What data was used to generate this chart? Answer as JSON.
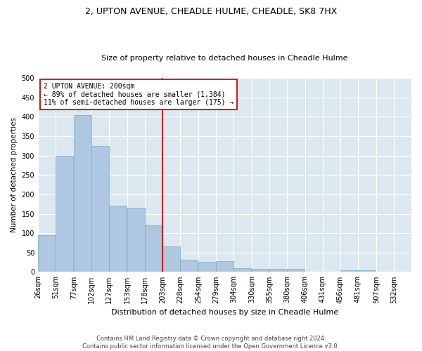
{
  "title": "2, UPTON AVENUE, CHEADLE HULME, CHEADLE, SK8 7HX",
  "subtitle": "Size of property relative to detached houses in Cheadle Hulme",
  "xlabel": "Distribution of detached houses by size in Cheadle Hulme",
  "ylabel": "Number of detached properties",
  "footer_line1": "Contains HM Land Registry data © Crown copyright and database right 2024.",
  "footer_line2": "Contains public sector information licensed under the Open Government Licence v3.0.",
  "annotation_line1": "2 UPTON AVENUE: 200sqm",
  "annotation_line2": "← 89% of detached houses are smaller (1,384)",
  "annotation_line3": "11% of semi-detached houses are larger (175) →",
  "bar_color": "#adc8e0",
  "bar_edge_color": "#7aaac8",
  "vline_color": "#cc2222",
  "annotation_box_color": "#ffffff",
  "annotation_box_edge": "#cc2222",
  "background_color": "#ffffff",
  "axes_bg_color": "#dce8f0",
  "grid_color": "#ffffff",
  "categories": [
    "26sqm",
    "51sqm",
    "77sqm",
    "102sqm",
    "127sqm",
    "153sqm",
    "178sqm",
    "203sqm",
    "228sqm",
    "254sqm",
    "279sqm",
    "304sqm",
    "330sqm",
    "355sqm",
    "380sqm",
    "406sqm",
    "431sqm",
    "456sqm",
    "481sqm",
    "507sqm",
    "532sqm"
  ],
  "bin_edges": [
    26,
    51,
    77,
    102,
    127,
    153,
    178,
    203,
    228,
    254,
    279,
    304,
    330,
    355,
    380,
    406,
    431,
    456,
    481,
    507,
    532
  ],
  "values": [
    95,
    300,
    405,
    325,
    170,
    165,
    120,
    65,
    32,
    27,
    28,
    10,
    8,
    8,
    8,
    1,
    0,
    5,
    5,
    1,
    0
  ],
  "ylim": [
    0,
    500
  ],
  "yticks": [
    0,
    50,
    100,
    150,
    200,
    250,
    300,
    350,
    400,
    450,
    500
  ],
  "vline_x": 203,
  "title_fontsize": 9,
  "subtitle_fontsize": 8,
  "ylabel_fontsize": 7.5,
  "xlabel_fontsize": 8,
  "tick_fontsize": 7,
  "footer_fontsize": 6,
  "annot_fontsize": 7
}
